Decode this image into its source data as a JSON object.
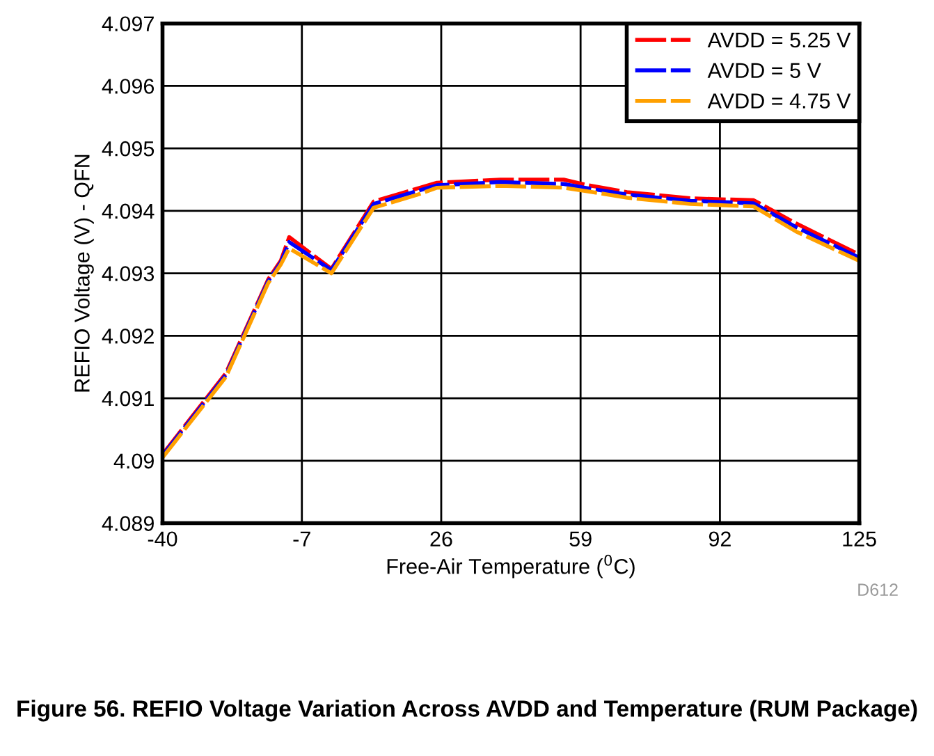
{
  "chart_data": {
    "type": "line",
    "title": "Figure 56. REFIO Voltage Variation Across AVDD and Temperature (RUM Package)",
    "xlabel": "Free-Air Temperature ($^{0}$C)",
    "ylabel": "REFIO Voltage (V) - QFN",
    "annotations": [
      "D612"
    ],
    "x": [
      -40,
      -25,
      -15,
      -12,
      -10,
      0,
      10,
      20,
      25,
      40,
      55,
      60,
      70,
      85,
      100,
      110,
      125
    ],
    "series": [
      {
        "name": "AVDD = 5.25 V",
        "color": "#ff0000",
        "values": [
          4.0901,
          4.0914,
          4.0929,
          4.0932,
          4.09358,
          4.09307,
          4.09415,
          4.09435,
          4.09445,
          4.0945,
          4.0945,
          4.09442,
          4.0943,
          4.0942,
          4.09417,
          4.0938,
          4.0933
        ]
      },
      {
        "name": "AVDD = 5 V",
        "color": "#0000ff",
        "values": [
          4.09008,
          4.09137,
          4.09287,
          4.09317,
          4.0935,
          4.09305,
          4.09411,
          4.09431,
          4.09441,
          4.09446,
          4.09443,
          4.09437,
          4.09426,
          4.09416,
          4.09412,
          4.09374,
          4.09325
        ]
      },
      {
        "name": "AVDD = 4.75 V",
        "color": "#ffa000",
        "values": [
          4.09005,
          4.09134,
          4.09284,
          4.09314,
          4.0934,
          4.093,
          4.09405,
          4.09425,
          4.09437,
          4.0944,
          4.09437,
          4.09432,
          4.09421,
          4.09411,
          4.09407,
          4.09367,
          4.0932
        ]
      }
    ],
    "xlim": [
      -40,
      125
    ],
    "xticks": [
      -40,
      -7,
      26,
      59,
      92,
      125
    ],
    "ylim": [
      4.089,
      4.097
    ],
    "yticks": [
      4.089,
      4.09,
      4.091,
      4.092,
      4.093,
      4.094,
      4.095,
      4.096,
      4.097
    ],
    "grid": true,
    "legend": "top right",
    "line_style": "dashed",
    "marker": "none"
  }
}
